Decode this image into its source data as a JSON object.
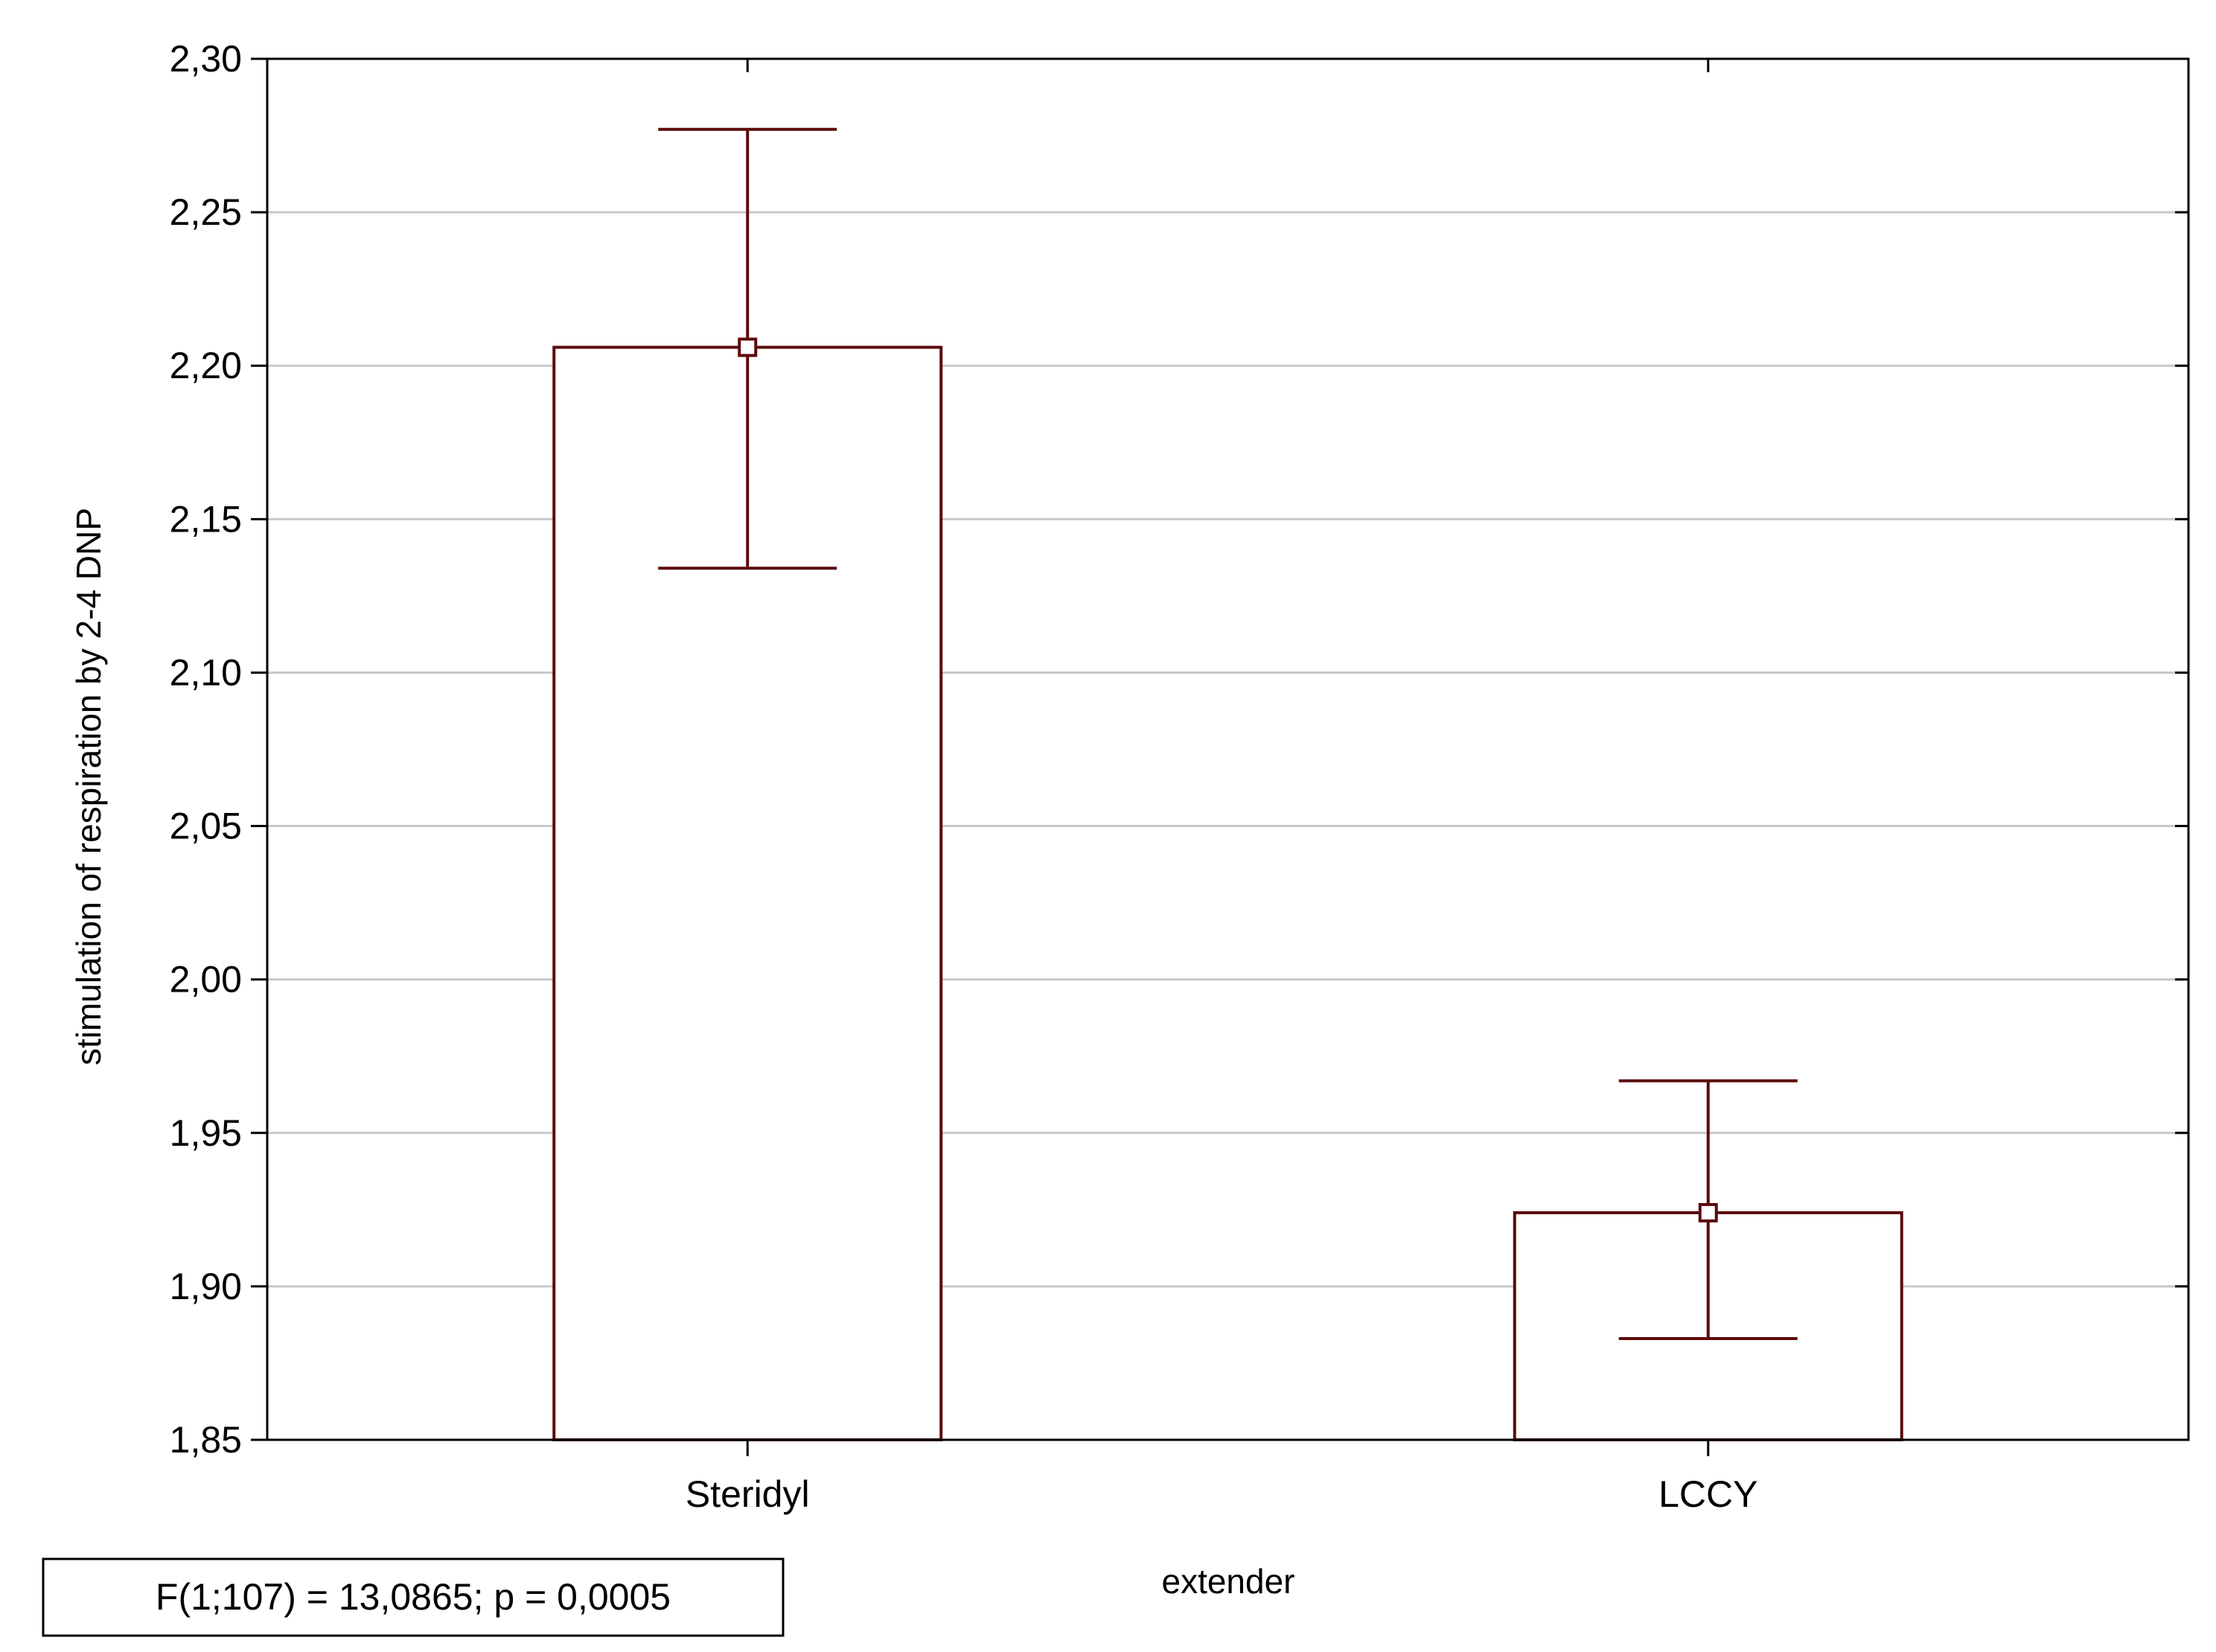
{
  "chart_data": {
    "type": "bar",
    "categories": [
      "Steridyl",
      "LCCY"
    ],
    "values": [
      2.206,
      1.924
    ],
    "error_low": [
      2.134,
      1.883
    ],
    "error_high": [
      2.277,
      1.967
    ],
    "ylim": [
      1.85,
      2.3
    ],
    "yticks": [
      1.85,
      1.9,
      1.95,
      2.0,
      2.05,
      2.1,
      2.15,
      2.2,
      2.25,
      2.3
    ],
    "ytick_labels": [
      "1,85",
      "1,90",
      "1,95",
      "2,00",
      "2,05",
      "2,10",
      "2,15",
      "2,20",
      "2,25",
      "2,30"
    ],
    "xlabel": "extender",
    "ylabel": "stimulation of respiration by 2-4 DNP",
    "grid": true,
    "bar_fill": "#ffffff",
    "bar_color": "#5c0a0a",
    "axis_color": "#000000",
    "grid_color": "#c8c8c8"
  },
  "stat_box": {
    "text": "F(1;107) = 13,0865; p = 0,0005"
  }
}
